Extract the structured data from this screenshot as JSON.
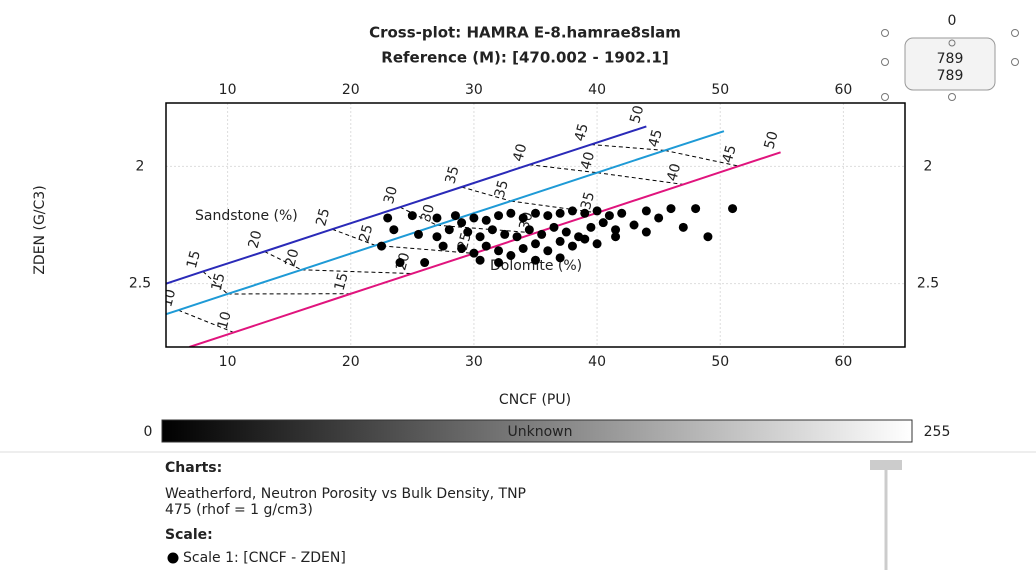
{
  "header": {
    "title": "Cross-plot: HAMRA E-8.hamrae8slam",
    "subtitle": "Reference (M): [470.002 - 1902.1]"
  },
  "widget": {
    "top": "0",
    "value_1": "789",
    "value_2": "789"
  },
  "chart_data": {
    "type": "scatter",
    "x_label": "CNCF (PU)",
    "y_label": "ZDEN (G/C3)",
    "xlim": [
      5,
      65
    ],
    "ylim": [
      2.77,
      1.73
    ],
    "xticks": [
      10,
      20,
      30,
      40,
      50,
      60
    ],
    "yticks": [
      2,
      2.5
    ],
    "grid": true,
    "points": {
      "color": "#000000",
      "x": [
        23,
        25,
        27,
        28.5,
        29,
        30,
        31,
        32,
        33,
        34,
        35,
        36,
        37,
        38,
        39,
        40,
        41,
        42,
        44,
        46,
        48,
        51,
        23.5,
        25.5,
        27,
        28,
        29.5,
        30.5,
        31.5,
        32.5,
        33.5,
        34.5,
        35.5,
        36.5,
        37.5,
        38.5,
        39.5,
        40.5,
        41.5,
        43,
        45,
        47,
        49,
        22.5,
        27.5,
        29,
        30,
        31,
        32,
        33,
        34,
        35,
        36,
        37,
        38,
        39,
        40,
        41.5,
        44,
        24,
        26,
        30.5,
        32,
        35,
        37
      ],
      "y": [
        2.22,
        2.21,
        2.22,
        2.21,
        2.24,
        2.22,
        2.23,
        2.21,
        2.2,
        2.22,
        2.2,
        2.21,
        2.2,
        2.19,
        2.2,
        2.19,
        2.21,
        2.2,
        2.19,
        2.18,
        2.18,
        2.18,
        2.27,
        2.29,
        2.3,
        2.27,
        2.28,
        2.3,
        2.27,
        2.29,
        2.3,
        2.27,
        2.29,
        2.26,
        2.28,
        2.3,
        2.26,
        2.24,
        2.27,
        2.25,
        2.22,
        2.26,
        2.3,
        2.34,
        2.34,
        2.35,
        2.37,
        2.34,
        2.36,
        2.38,
        2.35,
        2.33,
        2.36,
        2.32,
        2.34,
        2.31,
        2.33,
        2.3,
        2.28,
        2.41,
        2.41,
        2.4,
        2.41,
        2.4,
        2.39
      ]
    },
    "lithology_lines": [
      {
        "label": "Sandstone (%)",
        "color": "#2a2ab8",
        "x": [
          5,
          8,
          13,
          18.5,
          24,
          29,
          34.5,
          39.5,
          44
        ],
        "y": [
          2.5,
          2.448,
          2.363,
          2.268,
          2.174,
          2.088,
          1.993,
          1.907,
          1.83
        ],
        "porosity": [
          null,
          15,
          20,
          25,
          30,
          35,
          40,
          45,
          50
        ]
      },
      {
        "color": "#1e9ad6",
        "x": [
          5,
          6,
          10,
          16,
          22,
          27,
          33,
          40,
          45.5,
          50.3
        ],
        "y": [
          2.63,
          2.613,
          2.544,
          2.441,
          2.337,
          2.251,
          2.148,
          2.027,
          1.932,
          1.85
        ],
        "porosity": [
          null,
          10,
          15,
          20,
          25,
          30,
          35,
          40,
          45,
          null
        ]
      },
      {
        "label": "Dolomite (%)",
        "color": "#e0147d",
        "x": [
          6.9,
          10.5,
          20,
          25,
          30,
          35,
          40,
          47,
          51.5,
          54.9
        ],
        "y": [
          2.77,
          2.708,
          2.543,
          2.457,
          2.371,
          2.284,
          2.198,
          2.077,
          1.999,
          1.94
        ],
        "porosity": [
          null,
          10,
          15,
          20,
          25,
          30,
          35,
          40,
          45,
          50
        ]
      }
    ]
  },
  "colorbar": {
    "min": 0,
    "label": "Unknown",
    "max": 255
  },
  "info": {
    "charts_heading": "Charts:",
    "charts_text_1": "Weatherford, Neutron Porosity vs Bulk Density, TNP",
    "charts_text_2": "475 (rhof = 1 g/cm3)",
    "scale_heading": "Scale:",
    "scale_item": "Scale 1:  [CNCF - ZDEN]"
  }
}
